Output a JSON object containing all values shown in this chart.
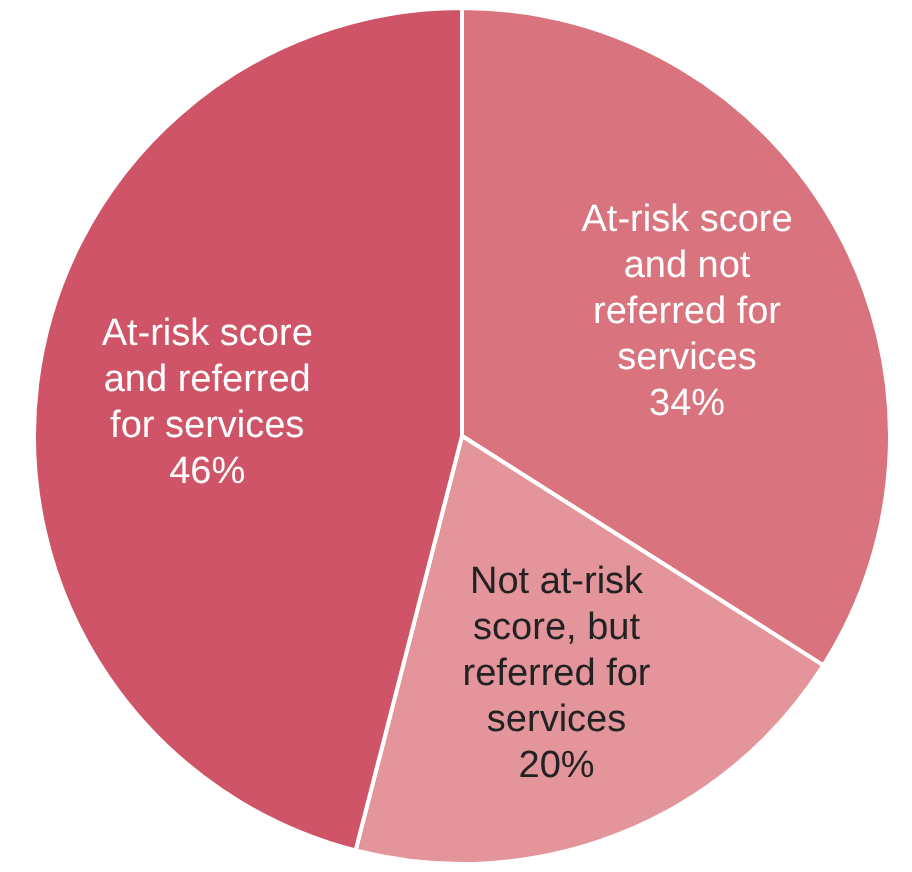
{
  "chart_data": {
    "type": "pie",
    "categories": [
      "At-risk score and not referred for services",
      "Not at-risk score, but referred for services",
      "At-risk score and referred for services"
    ],
    "values": [
      34,
      20,
      46
    ],
    "colors": [
      "#d9737d",
      "#e4959b",
      "#cf5467"
    ],
    "value_labels": [
      "34%",
      "20%",
      "46%"
    ],
    "legend": false
  }
}
